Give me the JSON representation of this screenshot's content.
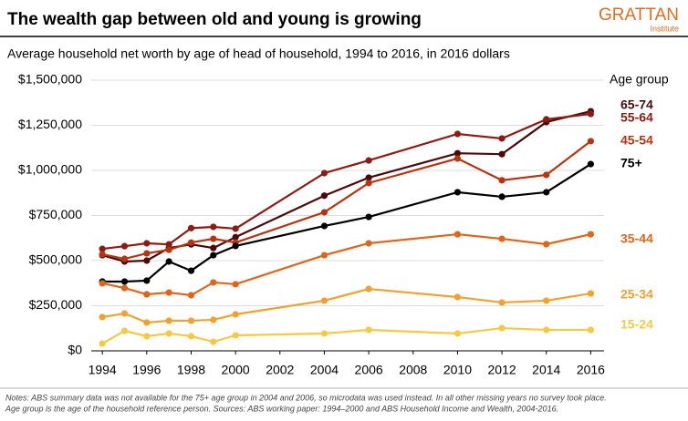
{
  "chart_data": {
    "type": "line",
    "title": "The wealth gap between old and young is growing",
    "subtitle": "Average household net worth by age of head of household, 1994 to 2016, in 2016 dollars",
    "logo": {
      "name": "GRATTAN",
      "sub": "Institute"
    },
    "legend_title": "Age group",
    "notes": [
      "Notes: ABS summary data was not available for the 75+ age group in 2004 and 2006, so microdata was used instead. In all other missing years no survey took place.",
      "Age group is the age of the household reference person. Sources: ABS working paper: 1994–2000 and ABS Household Income and Wealth, 2004-2016."
    ],
    "x": [
      1994,
      1995,
      1996,
      1997,
      1998,
      1999,
      2000,
      2004,
      2006,
      2010,
      2012,
      2014,
      2016
    ],
    "xlim": [
      1993.5,
      2016.6
    ],
    "xticks": [
      1994,
      1996,
      1998,
      2000,
      2002,
      2004,
      2006,
      2008,
      2010,
      2012,
      2014,
      2016
    ],
    "ylim": [
      0,
      1500000
    ],
    "yticks": [
      {
        "value": 0,
        "label": "$0"
      },
      {
        "value": 250000,
        "label": "$250,000"
      },
      {
        "value": 500000,
        "label": "$500,000"
      },
      {
        "value": 750000,
        "label": "$750,000"
      },
      {
        "value": 1000000,
        "label": "$1,000,000"
      },
      {
        "value": 1250000,
        "label": "$1,250,000"
      },
      {
        "value": 1500000,
        "label": "$1,500,000"
      }
    ],
    "grid": true,
    "series": [
      {
        "name": "65-74",
        "color": "#4a0a0a",
        "values": [
          530000,
          495000,
          500000,
          570000,
          590000,
          570000,
          630000,
          860000,
          960000,
          1095000,
          1090000,
          1268000,
          1328000
        ]
      },
      {
        "name": "55-64",
        "color": "#8e1b12",
        "values": [
          565000,
          580000,
          596000,
          590000,
          680000,
          687000,
          677000,
          985000,
          1055000,
          1202000,
          1177000,
          1283000,
          1313000
        ]
      },
      {
        "name": "45-54",
        "color": "#b8330e",
        "values": [
          535000,
          510000,
          540000,
          560000,
          600000,
          621000,
          600000,
          768000,
          930000,
          1066000,
          945000,
          975000,
          1162000
        ]
      },
      {
        "name": "75+",
        "color": "#000000",
        "values": [
          384000,
          384000,
          389000,
          495000,
          444000,
          530000,
          581000,
          692000,
          742000,
          879000,
          854000,
          879000,
          1035000
        ]
      },
      {
        "name": "35-44",
        "color": "#df6519",
        "values": [
          374000,
          348000,
          313000,
          323000,
          308000,
          379000,
          369000,
          530000,
          596000,
          646000,
          621000,
          591000,
          646000
        ]
      },
      {
        "name": "25-34",
        "color": "#f0a12f",
        "values": [
          187000,
          207000,
          157000,
          167000,
          167000,
          172000,
          202000,
          278000,
          343000,
          298000,
          268000,
          278000,
          318000
        ]
      },
      {
        "name": "15-24",
        "color": "#f6c945",
        "values": [
          40000,
          111000,
          81000,
          96000,
          81000,
          50000,
          86000,
          96000,
          116000,
          96000,
          126000,
          116000,
          116000
        ]
      }
    ]
  }
}
